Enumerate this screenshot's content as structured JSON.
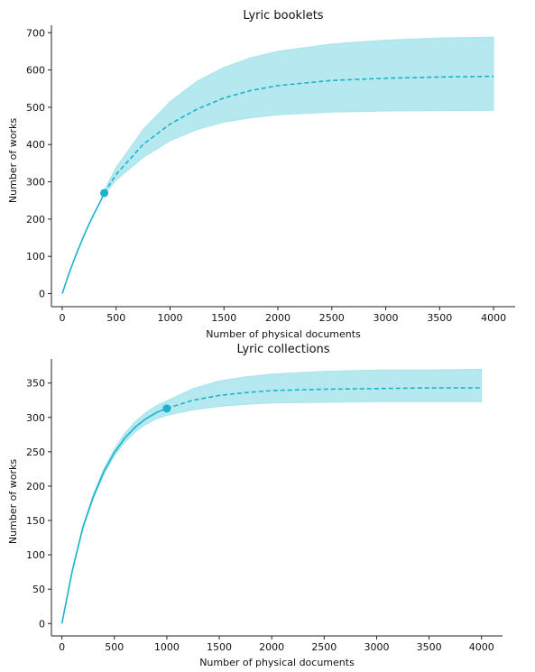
{
  "chart_data": [
    {
      "type": "line",
      "title": "Lyric booklets",
      "xlabel": "Number of physical documents",
      "ylabel": "Number of works",
      "xlim": [
        -100,
        4200
      ],
      "ylim": [
        -35,
        720
      ],
      "xticks": [
        0,
        500,
        1000,
        1500,
        2000,
        2500,
        3000,
        3500,
        4000
      ],
      "yticks": [
        0,
        100,
        200,
        300,
        400,
        500,
        600,
        700
      ],
      "color": "#1ab3cc",
      "band_color": "#a8e4ec",
      "observed_point": {
        "x": 390,
        "y": 270
      },
      "series": [
        {
          "style": "solid",
          "x": [
            0,
            50,
            100,
            150,
            200,
            250,
            300,
            350,
            390
          ],
          "y": [
            0,
            43,
            83,
            120,
            155,
            187,
            217,
            245,
            270
          ]
        },
        {
          "style": "dashed",
          "x": [
            390,
            500,
            750,
            1000,
            1250,
            1500,
            1750,
            2000,
            2500,
            3000,
            3500,
            4000
          ],
          "y": [
            270,
            320,
            400,
            455,
            495,
            525,
            545,
            558,
            572,
            578,
            581,
            583
          ]
        }
      ],
      "band": {
        "x": [
          390,
          500,
          750,
          1000,
          1250,
          1500,
          1750,
          2000,
          2500,
          3000,
          3500,
          4000
        ],
        "upper": [
          278,
          338,
          440,
          515,
          570,
          607,
          633,
          650,
          670,
          680,
          686,
          688
        ],
        "lower": [
          265,
          305,
          365,
          410,
          440,
          460,
          472,
          480,
          487,
          490,
          491,
          492
        ]
      }
    },
    {
      "type": "line",
      "title": "Lyric collections",
      "xlabel": "Number of physical documents",
      "ylabel": "Number of works",
      "xlim": [
        -100,
        4200
      ],
      "ylim": [
        -18,
        385
      ],
      "xticks": [
        0,
        500,
        1000,
        1500,
        2000,
        2500,
        3000,
        3500,
        4000
      ],
      "yticks": [
        0,
        50,
        100,
        150,
        200,
        250,
        300,
        350
      ],
      "color": "#1ab3cc",
      "band_color": "#a8e4ec",
      "observed_point": {
        "x": 1000,
        "y": 313
      },
      "series": [
        {
          "style": "solid",
          "x": [
            0,
            100,
            200,
            300,
            400,
            500,
            600,
            700,
            800,
            900,
            1000
          ],
          "y": [
            0,
            78,
            140,
            185,
            221,
            249,
            270,
            286,
            298,
            307,
            313
          ]
        },
        {
          "style": "dashed",
          "x": [
            1000,
            1250,
            1500,
            1750,
            2000,
            2500,
            3000,
            3500,
            4000
          ],
          "y": [
            313,
            325,
            332,
            336,
            339,
            341,
            342,
            343,
            343
          ]
        }
      ],
      "band": {
        "x": [
          0,
          100,
          200,
          300,
          400,
          500,
          600,
          700,
          800,
          900,
          1000,
          1250,
          1500,
          1750,
          2000,
          2500,
          3000,
          3500,
          4000
        ],
        "upper": [
          0,
          79,
          142,
          188,
          225,
          254,
          277,
          294,
          307,
          317,
          324,
          342,
          353,
          359,
          363,
          367,
          369,
          369,
          370
        ],
        "lower": [
          0,
          77,
          138,
          182,
          217,
          244,
          264,
          279,
          290,
          298,
          303,
          311,
          316,
          319,
          321,
          322,
          323,
          323,
          323
        ]
      }
    }
  ]
}
